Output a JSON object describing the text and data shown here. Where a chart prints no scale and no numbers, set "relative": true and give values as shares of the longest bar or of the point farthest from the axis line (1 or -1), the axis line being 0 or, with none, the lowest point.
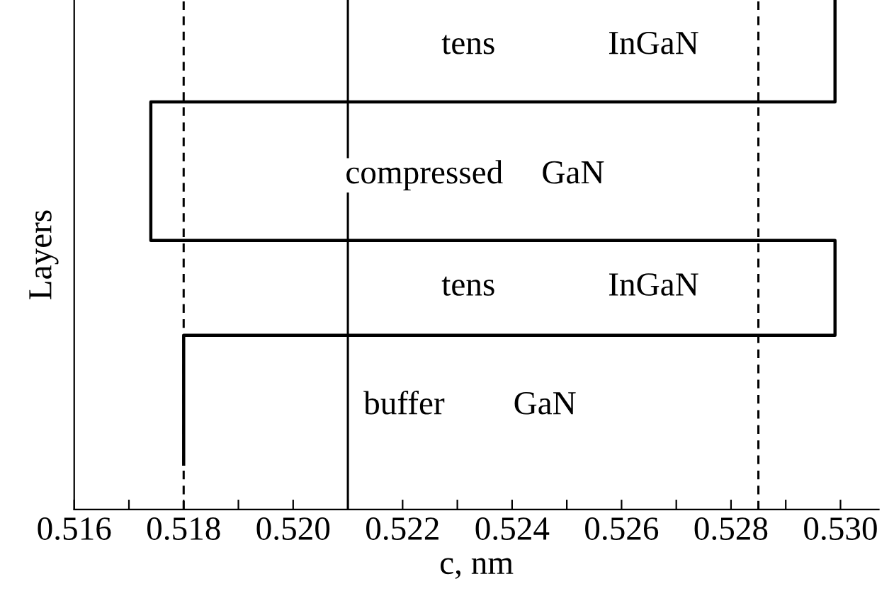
{
  "chart_data": {
    "type": "line",
    "xlabel": "c, nm",
    "ylabel": "Layers",
    "relative": true,
    "color": "#000000",
    "line_style": "solid",
    "marker": "none",
    "grid": false,
    "legend": false,
    "tick_labels": "x",
    "x": [
      0.518,
      0.518,
      0.5299,
      0.5299,
      0.5174,
      0.5174,
      0.5299,
      0.5299
    ],
    "values": [
      0.089,
      0.342,
      0.342,
      0.528,
      0.528,
      0.8,
      0.8,
      1
    ],
    "xlim": [
      0.516,
      0.5307
    ],
    "xticks": [
      {
        "value": 0.516,
        "label": "0.516"
      },
      {
        "value": 0.517,
        "label": null
      },
      {
        "value": 0.518,
        "label": "0.518"
      },
      {
        "value": 0.519,
        "label": null
      },
      {
        "value": 0.52,
        "label": "0.520"
      },
      {
        "value": 0.521,
        "label": null
      },
      {
        "value": 0.522,
        "label": "0.522"
      },
      {
        "value": 0.523,
        "label": null
      },
      {
        "value": 0.524,
        "label": "0.524"
      },
      {
        "value": 0.525,
        "label": null
      },
      {
        "value": 0.526,
        "label": "0.526"
      },
      {
        "value": 0.527,
        "label": null
      },
      {
        "value": 0.528,
        "label": "0.528"
      },
      {
        "value": 0.529,
        "label": null
      },
      {
        "value": 0.53,
        "label": "0.530"
      }
    ],
    "ref_lines": [
      {
        "axis": "x",
        "value": 0.518,
        "color": "#000000",
        "line_style": "dashed"
      },
      {
        "axis": "x",
        "value": 0.521,
        "color": "#000000",
        "line_style": "solid"
      },
      {
        "axis": "x",
        "value": 0.5285,
        "color": "#000000",
        "line_style": "dashed"
      }
    ],
    "annotations": [
      "tens",
      "InGaN",
      "compressed",
      "GaN",
      "tens",
      "InGaN",
      "buffer",
      "GaN"
    ]
  }
}
